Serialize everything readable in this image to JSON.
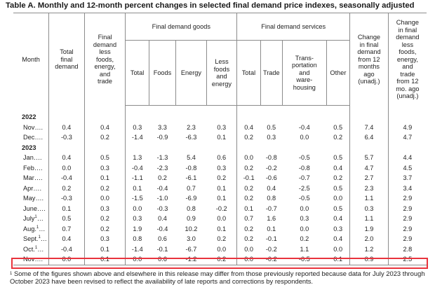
{
  "title": "Table A. Monthly and 12-month percent changes in selected final demand price indexes, seasonally adjusted",
  "headers": {
    "month": "Month",
    "total_final_demand": [
      "Total",
      "final",
      "demand"
    ],
    "fd_less": [
      "Final",
      "demand",
      "less",
      "foods,",
      "energy,",
      "and",
      "trade"
    ],
    "goods_group": "Final demand goods",
    "goods_total": "Total",
    "goods_foods": "Foods",
    "goods_energy": "Energy",
    "goods_less": [
      "Less",
      "foods",
      "and",
      "energy"
    ],
    "services_group": "Final demand services",
    "services_total": "Total",
    "services_trade": "Trade",
    "services_transport": [
      "Trans-",
      "portation",
      "and",
      "ware-",
      "housing"
    ],
    "services_other": "Other",
    "change_12": [
      "Change",
      "in final",
      "demand",
      "from 12",
      "months",
      "ago",
      "(unadj.)"
    ],
    "change_less": [
      "Change",
      "in final",
      "demand",
      "less",
      "foods,",
      "energy,",
      "and",
      "trade",
      "from 12",
      "mo. ago",
      "(unadj.)"
    ]
  },
  "years": {
    "y2022": "2022",
    "y2023": "2023"
  },
  "rows": [
    {
      "month": "Nov….",
      "sup": "",
      "values": [
        "0.4",
        "0.4",
        "0.3",
        "3.3",
        "2.3",
        "0.3",
        "0.4",
        "0.5",
        "-0.4",
        "0.5",
        "7.4",
        "4.9"
      ]
    },
    {
      "month": "Dec….",
      "sup": "",
      "values": [
        "-0.3",
        "0.2",
        "-1.4",
        "-0.9",
        "-6.3",
        "0.1",
        "0.2",
        "0.3",
        "0.0",
        "0.2",
        "6.4",
        "4.7"
      ]
    },
    {
      "month": "Jan….",
      "sup": "",
      "values": [
        "0.4",
        "0.5",
        "1.3",
        "-1.3",
        "5.4",
        "0.6",
        "0.0",
        "-0.8",
        "-0.5",
        "0.5",
        "5.7",
        "4.4"
      ]
    },
    {
      "month": "Feb….",
      "sup": "",
      "values": [
        "0.0",
        "0.3",
        "-0.4",
        "-2.3",
        "-0.8",
        "0.3",
        "0.2",
        "-0.2",
        "-0.8",
        "0.4",
        "4.7",
        "4.5"
      ]
    },
    {
      "month": "Mar….",
      "sup": "",
      "values": [
        "-0.4",
        "0.1",
        "-1.1",
        "0.2",
        "-6.1",
        "0.2",
        "-0.1",
        "-0.6",
        "-0.7",
        "0.2",
        "2.7",
        "3.7"
      ]
    },
    {
      "month": "Apr….",
      "sup": "",
      "values": [
        "0.2",
        "0.2",
        "0.1",
        "-0.4",
        "0.7",
        "0.1",
        "0.2",
        "0.4",
        "-2.5",
        "0.5",
        "2.3",
        "3.4"
      ]
    },
    {
      "month": "May….",
      "sup": "",
      "values": [
        "-0.3",
        "0.0",
        "-1.5",
        "-1.0",
        "-6.9",
        "0.1",
        "0.2",
        "0.8",
        "-0.5",
        "0.0",
        "1.1",
        "2.9"
      ]
    },
    {
      "month": "June….",
      "sup": "",
      "values": [
        "0.1",
        "0.3",
        "0.0",
        "-0.3",
        "0.8",
        "-0.2",
        "0.1",
        "-0.7",
        "0.0",
        "0.5",
        "0.3",
        "2.9"
      ]
    },
    {
      "month": "July",
      "sup": "1",
      "values": [
        "0.5",
        "0.2",
        "0.3",
        "0.4",
        "0.9",
        "0.0",
        "0.7",
        "1.6",
        "0.3",
        "0.4",
        "1.1",
        "2.9"
      ]
    },
    {
      "month": "Aug.",
      "sup": "1",
      "values": [
        "0.7",
        "0.2",
        "1.9",
        "-0.4",
        "10.2",
        "0.1",
        "0.2",
        "0.1",
        "0.0",
        "0.3",
        "1.9",
        "2.9"
      ]
    },
    {
      "month": "Sept.",
      "sup": "1",
      "values": [
        "0.4",
        "0.3",
        "0.8",
        "0.6",
        "3.0",
        "0.2",
        "0.2",
        "-0.1",
        "0.2",
        "0.4",
        "2.0",
        "2.9"
      ]
    },
    {
      "month": "Oct.",
      "sup": "1",
      "values": [
        "-0.4",
        "0.1",
        "-1.4",
        "-0.1",
        "-6.7",
        "0.0",
        "0.0",
        "-0.2",
        "1.1",
        "0.0",
        "1.2",
        "2.8"
      ]
    },
    {
      "month": "Nov….",
      "sup": "",
      "values": [
        "0.0",
        "0.1",
        "0.0",
        "0.6",
        "-1.2",
        "0.2",
        "0.0",
        "-0.2",
        "-0.5",
        "0.1",
        "0.9",
        "2.5"
      ]
    }
  ],
  "footnote": {
    "mark": "1",
    "text": "Some of the figures shown above and elsewhere in this release may differ from those previously reported because data for July 2023 through October 2023 have been revised to reflect the availability of late reports and corrections by respondents."
  },
  "highlight_color": "#e8343d"
}
